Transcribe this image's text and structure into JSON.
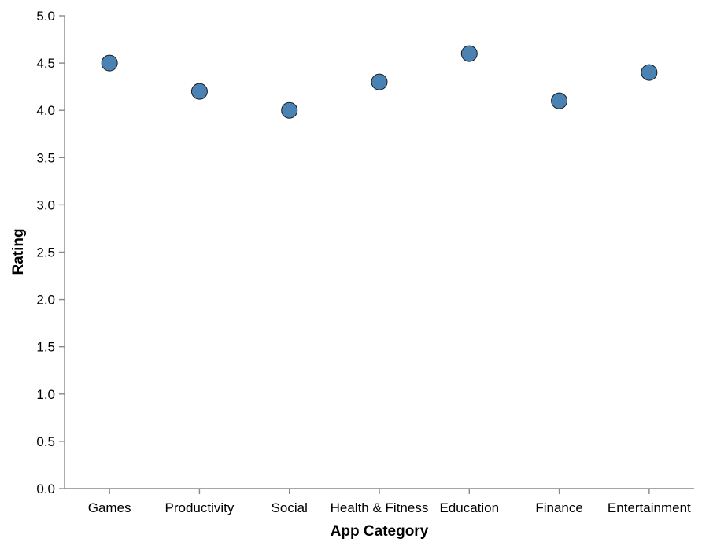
{
  "chart_data": {
    "type": "scatter",
    "title": "",
    "xlabel": "App Category",
    "ylabel": "Rating",
    "categories": [
      "Games",
      "Productivity",
      "Social",
      "Health & Fitness",
      "Education",
      "Finance",
      "Entertainment"
    ],
    "values": [
      4.5,
      4.2,
      4.0,
      4.3,
      4.6,
      4.1,
      4.4
    ],
    "ylim": [
      0,
      5
    ],
    "yticks": [
      "0.0",
      "0.5",
      "1.0",
      "1.5",
      "2.0",
      "2.5",
      "3.0",
      "3.5",
      "4.0",
      "4.5",
      "5.0"
    ],
    "grid": false,
    "legend": "none",
    "colors": {
      "point": "#4a82b4",
      "axis": "#888888"
    }
  }
}
